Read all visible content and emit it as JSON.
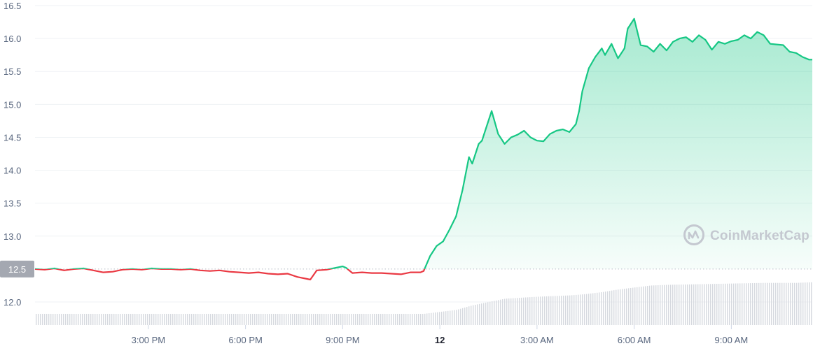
{
  "watermark": {
    "brand": "CoinMarketCap",
    "icon": "coinmarketcap-logo-icon",
    "color": "#c4c8d0"
  },
  "current_price_marker": {
    "value": 12.5,
    "label": "12.5",
    "color": "#a4a8b1"
  },
  "colors": {
    "up_line": "#16c784",
    "down_line": "#ea3943",
    "grid": "#eff2f5",
    "tick_text": "#58667e",
    "volume": "#d6d9df"
  },
  "chart_data": {
    "type": "area",
    "title": "",
    "xlabel": "",
    "ylabel": "",
    "x_unit": "hours",
    "xlim": [
      11.5,
      35.5
    ],
    "ylim": [
      11.65,
      16.5
    ],
    "y_ticks": [
      12.0,
      12.5,
      13.0,
      13.5,
      14.0,
      14.5,
      15.0,
      15.5,
      16.0,
      16.5
    ],
    "y_tick_labels": [
      "12.0",
      "12.5",
      "13.0",
      "13.5",
      "14.0",
      "14.5",
      "15.0",
      "15.5",
      "16.0",
      "16.5"
    ],
    "x_ticks": [
      {
        "x": 15,
        "label": "3:00 PM",
        "bold": false
      },
      {
        "x": 18,
        "label": "6:00 PM",
        "bold": false
      },
      {
        "x": 21,
        "label": "9:00 PM",
        "bold": false
      },
      {
        "x": 24,
        "label": "12",
        "bold": true
      },
      {
        "x": 27,
        "label": "3:00 AM",
        "bold": false
      },
      {
        "x": 30,
        "label": "6:00 AM",
        "bold": false
      },
      {
        "x": 33,
        "label": "9:00 AM",
        "bold": false
      }
    ],
    "baseline_value": 12.5,
    "grid": true,
    "legend": "none",
    "series": [
      {
        "kind": "price",
        "x": [
          11.5,
          11.8,
          12.1,
          12.4,
          12.7,
          13.0,
          13.3,
          13.6,
          13.9,
          14.2,
          14.5,
          14.8,
          15.1,
          15.4,
          15.7,
          16.0,
          16.3,
          16.6,
          16.9,
          17.2,
          17.5,
          17.8,
          18.1,
          18.4,
          18.7,
          19.0,
          19.3,
          19.6,
          19.9,
          20.0,
          20.2,
          20.5,
          20.8,
          21.0,
          21.1,
          21.3,
          21.6,
          21.9,
          22.2,
          22.5,
          22.8,
          23.1,
          23.4,
          23.5,
          23.7,
          23.9,
          24.1,
          24.3,
          24.5,
          24.7,
          24.9,
          25.0,
          25.2,
          25.3,
          25.4,
          25.6,
          25.8,
          26.0,
          26.2,
          26.4,
          26.6,
          26.8,
          27.0,
          27.2,
          27.4,
          27.6,
          27.8,
          28.0,
          28.2,
          28.3,
          28.4,
          28.6,
          28.8,
          29.0,
          29.1,
          29.3,
          29.5,
          29.7,
          29.8,
          30.0,
          30.2,
          30.4,
          30.6,
          30.8,
          31.0,
          31.2,
          31.4,
          31.6,
          31.8,
          32.0,
          32.2,
          32.4,
          32.6,
          32.8,
          33.0,
          33.2,
          33.4,
          33.6,
          33.8,
          34.0,
          34.2,
          34.4,
          34.6,
          34.8,
          35.0,
          35.2,
          35.4,
          35.5
        ],
        "y": [
          12.5,
          12.49,
          12.51,
          12.48,
          12.5,
          12.51,
          12.48,
          12.45,
          12.46,
          12.49,
          12.5,
          12.49,
          12.51,
          12.5,
          12.5,
          12.49,
          12.5,
          12.48,
          12.47,
          12.48,
          12.46,
          12.45,
          12.44,
          12.45,
          12.43,
          12.42,
          12.43,
          12.38,
          12.35,
          12.34,
          12.48,
          12.49,
          12.52,
          12.54,
          12.52,
          12.44,
          12.45,
          12.44,
          12.44,
          12.43,
          12.42,
          12.45,
          12.45,
          12.47,
          12.7,
          12.85,
          12.92,
          13.1,
          13.3,
          13.7,
          14.2,
          14.1,
          14.4,
          14.45,
          14.6,
          14.9,
          14.55,
          14.4,
          14.5,
          14.54,
          14.6,
          14.5,
          14.45,
          14.44,
          14.55,
          14.6,
          14.62,
          14.58,
          14.7,
          14.9,
          15.2,
          15.55,
          15.72,
          15.85,
          15.75,
          15.92,
          15.7,
          15.85,
          16.15,
          16.3,
          15.9,
          15.88,
          15.8,
          15.92,
          15.82,
          15.95,
          16.0,
          16.02,
          15.95,
          16.05,
          15.98,
          15.83,
          15.95,
          15.92,
          15.96,
          15.98,
          16.05,
          16.0,
          16.1,
          16.05,
          15.92,
          15.91,
          15.9,
          15.8,
          15.78,
          15.72,
          15.68,
          15.68
        ]
      },
      {
        "kind": "volume",
        "x": [
          11.5,
          23.5,
          24.0,
          24.5,
          25.0,
          25.5,
          26.0,
          27.0,
          28.0,
          28.5,
          29.0,
          29.5,
          30.0,
          30.5,
          31.0,
          32.0,
          33.0,
          34.0,
          35.0,
          35.5
        ],
        "y": [
          11.82,
          11.82,
          11.85,
          11.88,
          11.95,
          12.0,
          12.05,
          12.08,
          12.1,
          12.12,
          12.15,
          12.19,
          12.22,
          12.25,
          12.26,
          12.27,
          12.28,
          12.29,
          12.29,
          12.3
        ]
      }
    ]
  }
}
